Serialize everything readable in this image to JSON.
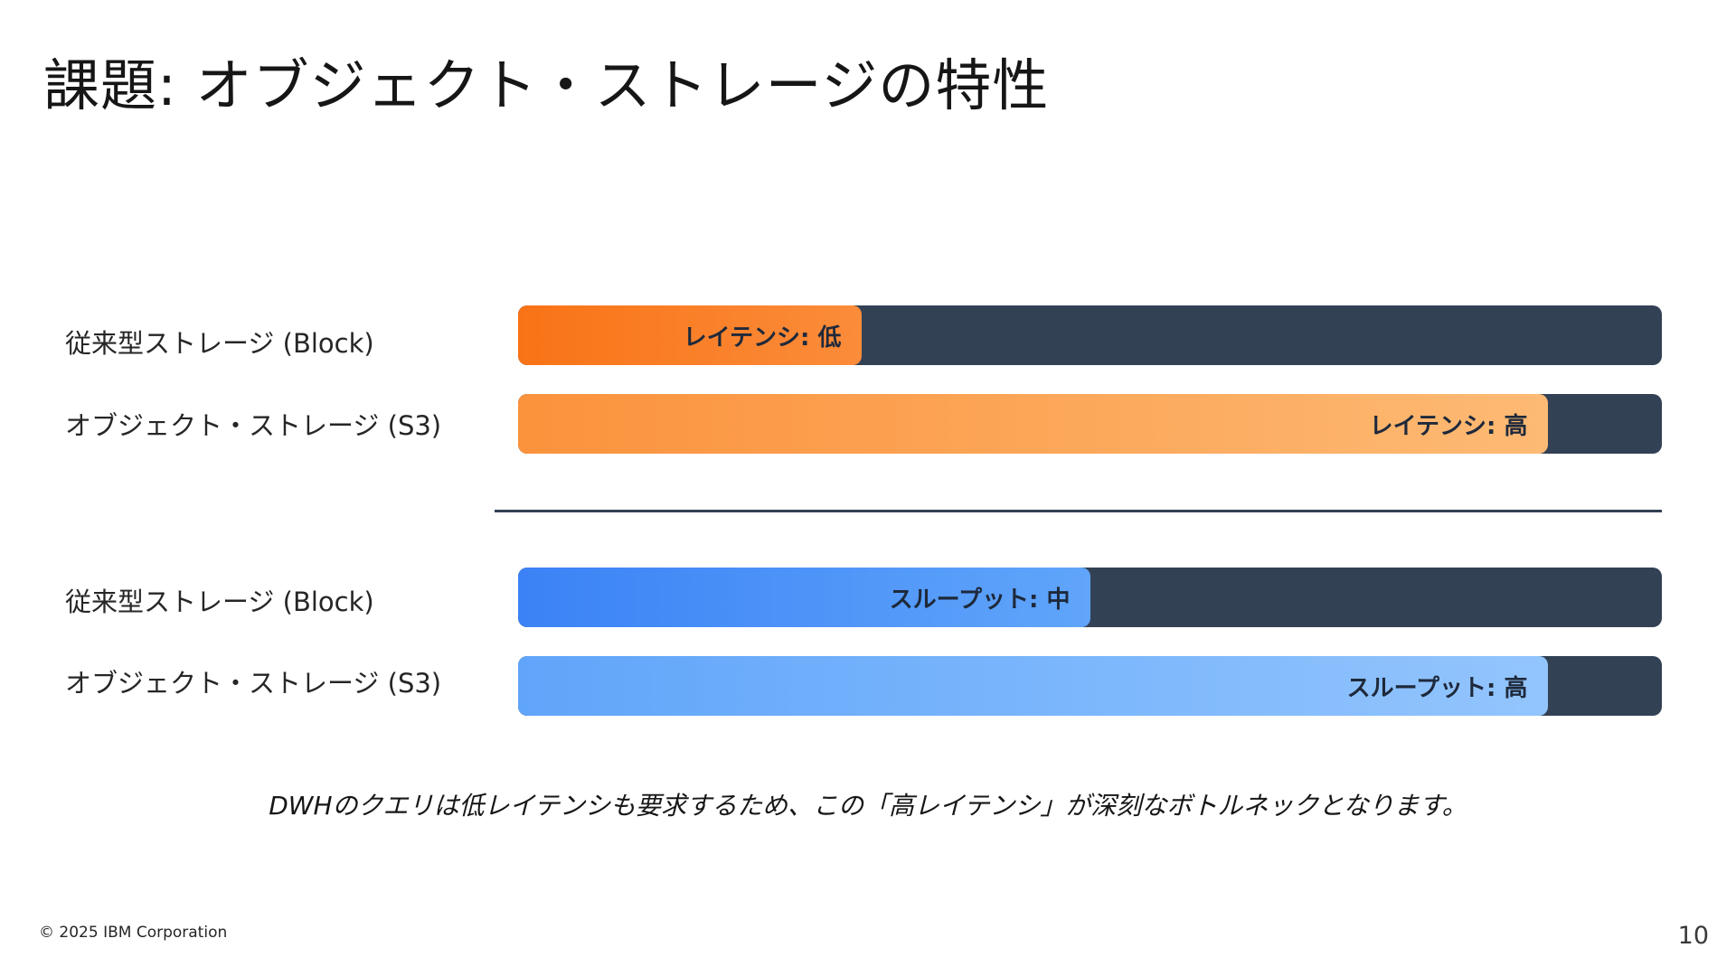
{
  "slide": {
    "title": "課題: オブジェクト・ストレージの特性",
    "caption": "DWHのクエリは低レイテンシも要求するため、この「高レイテンシ」が深刻なボトルネックとなります。",
    "footer": "© 2025 IBM Corporation",
    "page_number": "10"
  },
  "rows": [
    {
      "label": "従来型ストレージ (Block)",
      "bar_text": "レイテンシ: 低",
      "fill_fraction": 0.3,
      "color_start": "#f97316",
      "color_end": "#fb8c3a"
    },
    {
      "label": "オブジェクト・ストレージ (S3)",
      "bar_text": "レイテンシ: 高",
      "fill_fraction": 0.9,
      "color_start": "#fb923c",
      "color_end": "#fdba74"
    },
    {
      "label": "従来型ストレージ (Block)",
      "bar_text": "スループット: 中",
      "fill_fraction": 0.5,
      "color_start": "#3b82f6",
      "color_end": "#60a5fa"
    },
    {
      "label": "オブジェクト・ストレージ (S3)",
      "bar_text": "スループット: 高",
      "fill_fraction": 0.9,
      "color_start": "#60a5fa",
      "color_end": "#93c5fd"
    }
  ],
  "colors": {
    "track": "#334155",
    "bar_text": "#1e293b"
  }
}
